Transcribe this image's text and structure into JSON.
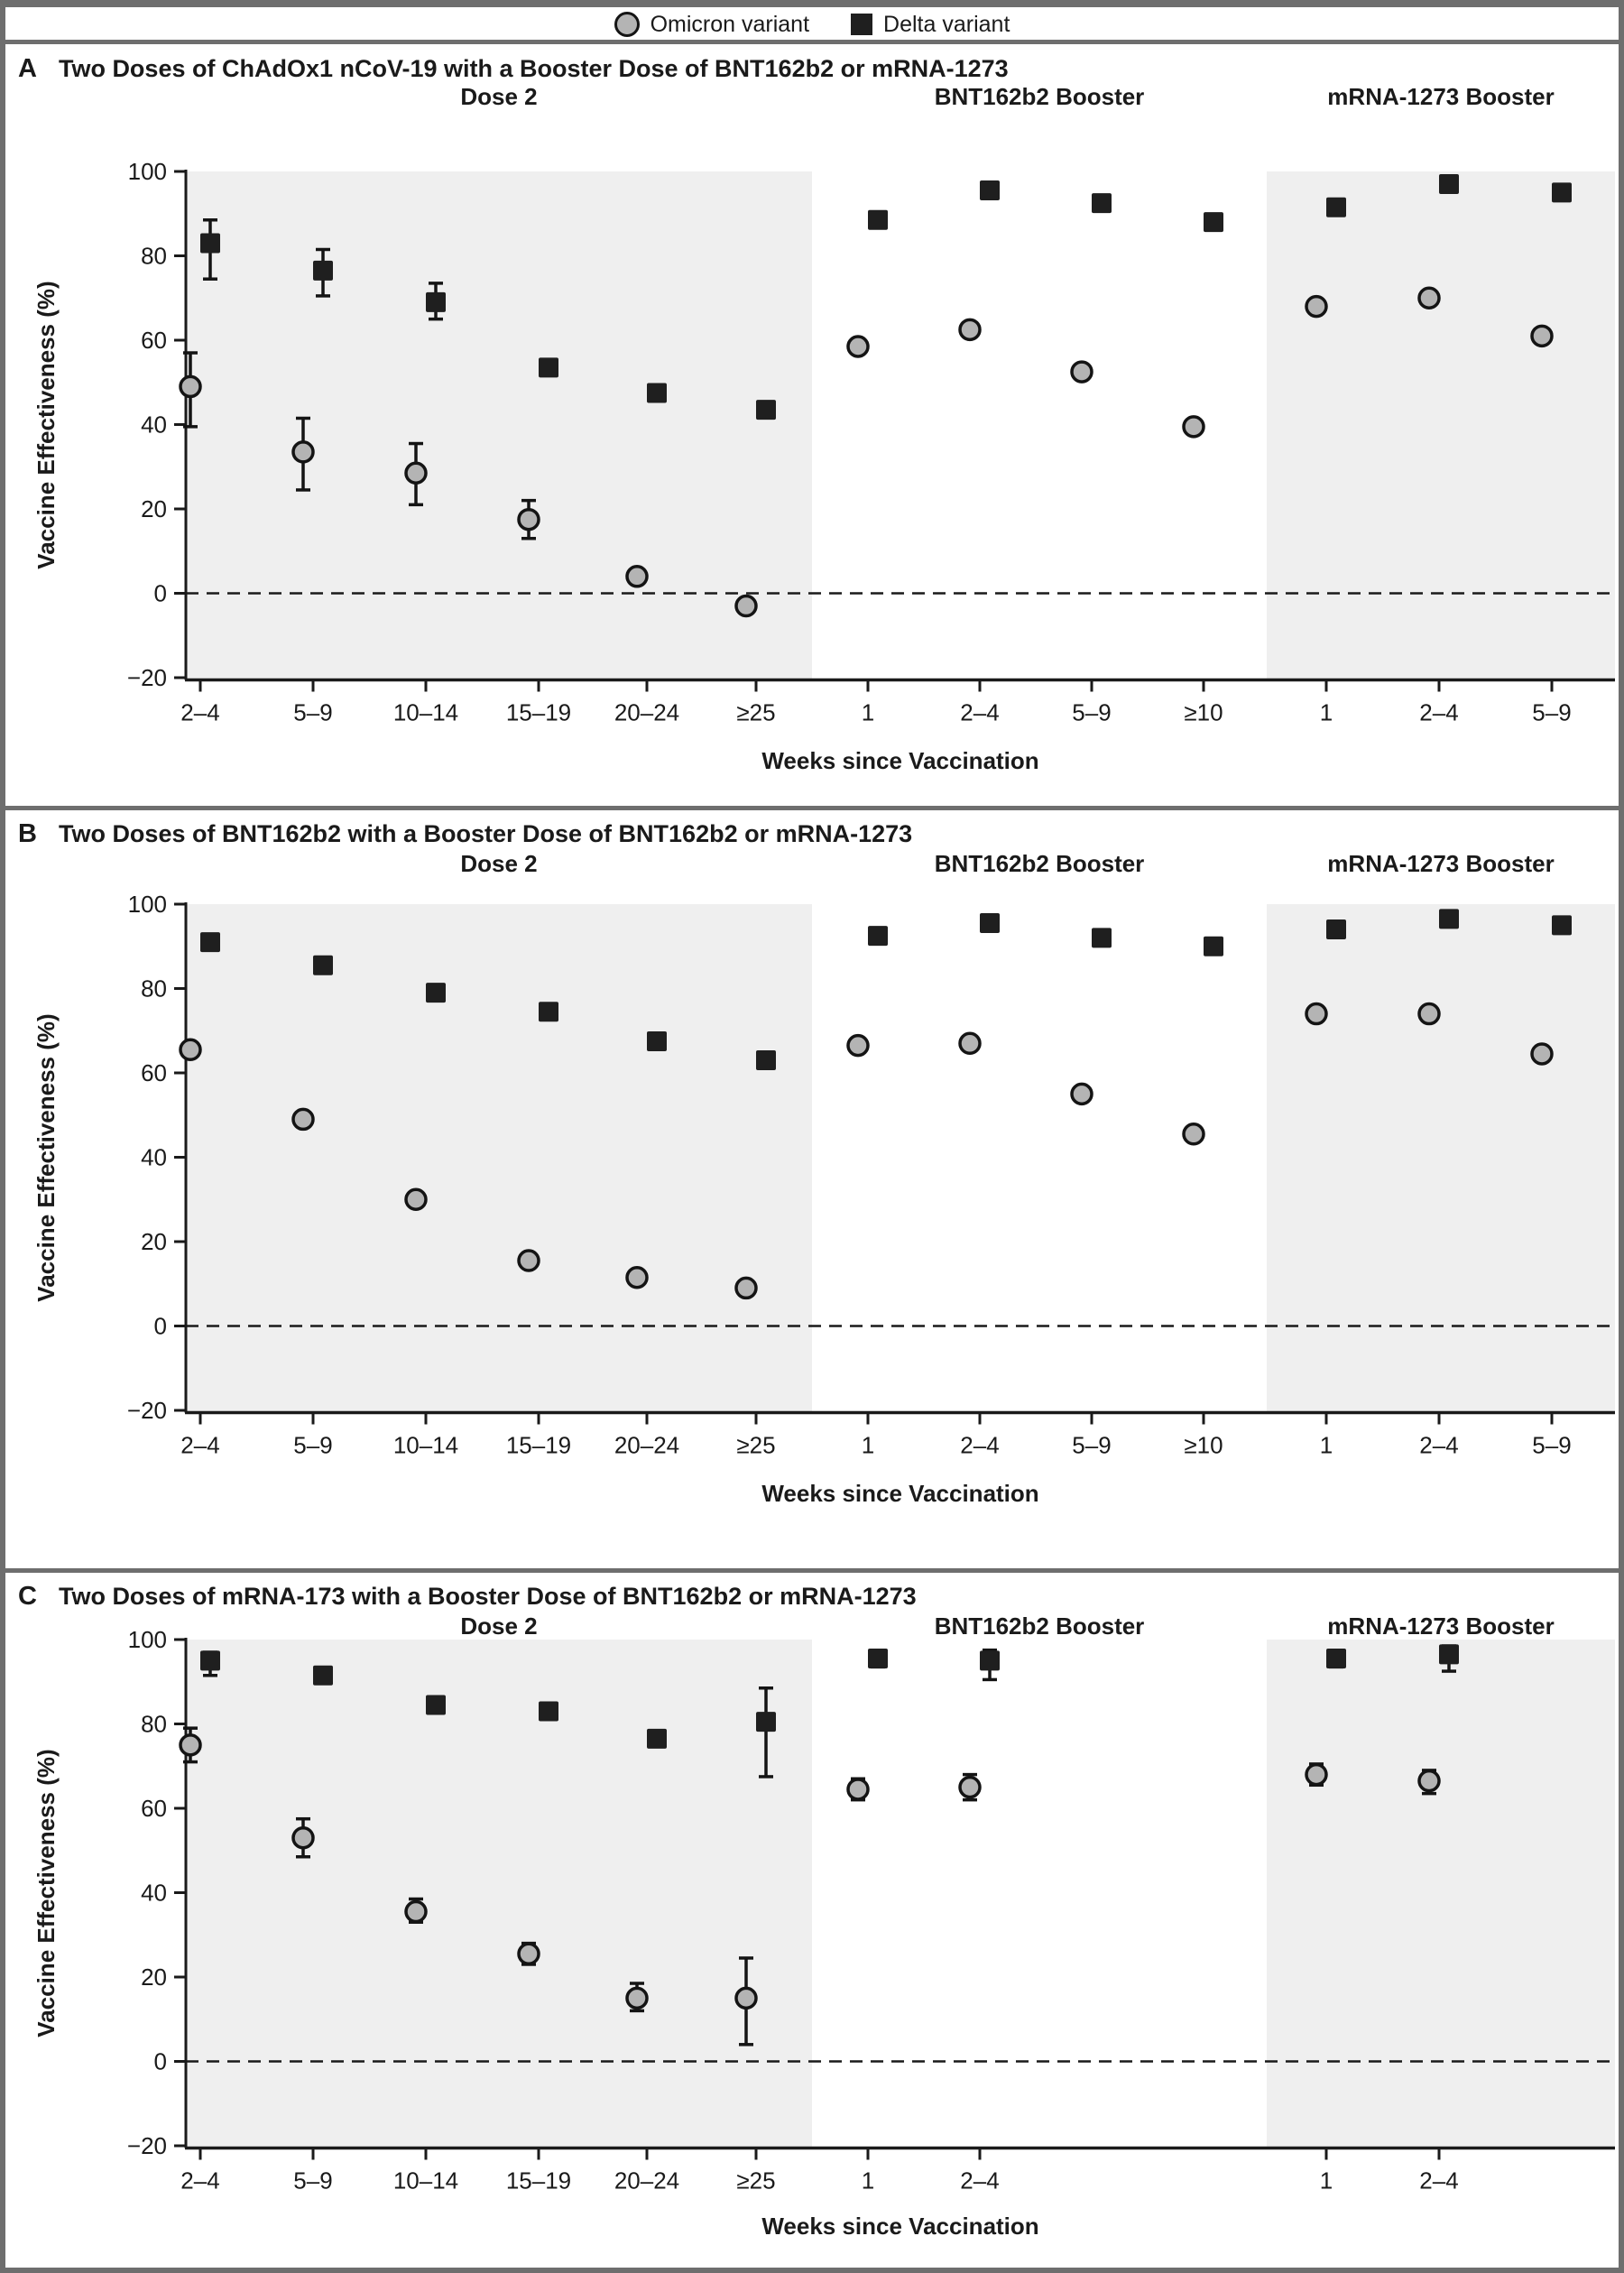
{
  "chart_data": {
    "type": "scatter",
    "y_label": "Vaccine Effectiveness (%)",
    "x_label": "Weeks since Vaccination",
    "y_ticks": [
      "100",
      "80",
      "60",
      "40",
      "20",
      "0",
      "−20"
    ],
    "ylim": [
      -20,
      100
    ],
    "grid": false,
    "zero_line": "dashed",
    "colors": {
      "omicron_fill": "#b4b4b4",
      "delta_fill": "#1f1f1f",
      "shaded_band": "#efefef",
      "frame": "#6e6e6e"
    },
    "legend": {
      "position": "top-center",
      "entries": [
        {
          "label": "Omicron variant",
          "marker": "circle",
          "fill": "#b4b4b4"
        },
        {
          "label": "Delta variant",
          "marker": "square",
          "fill": "#1f1f1f"
        }
      ]
    },
    "panels": [
      {
        "letter": "A",
        "title": "Two Doses of ChAdOx1 nCoV-19 with a Booster Dose of BNT162b2 or mRNA-1273",
        "sections": [
          {
            "key": "dose2",
            "name": "Dose 2",
            "shaded": true,
            "categories": [
              "2–4",
              "5–9",
              "10–14",
              "15–19",
              "20–24",
              "≥25"
            ],
            "series": {
              "omicron": [
                {
                  "v": 49,
                  "lo": 39.5,
                  "hi": 57
                },
                {
                  "v": 33.5,
                  "lo": 24.5,
                  "hi": 41.5
                },
                {
                  "v": 28.5,
                  "lo": 21,
                  "hi": 35.5
                },
                {
                  "v": 17.5,
                  "lo": 13,
                  "hi": 22
                },
                {
                  "v": 4
                },
                {
                  "v": -3
                }
              ],
              "delta": [
                {
                  "v": 83,
                  "lo": 74.5,
                  "hi": 88.5
                },
                {
                  "v": 76.5,
                  "lo": 70.5,
                  "hi": 81.5
                },
                {
                  "v": 69,
                  "lo": 65,
                  "hi": 73.5
                },
                {
                  "v": 53.5
                },
                {
                  "v": 47.5
                },
                {
                  "v": 43.5
                }
              ]
            }
          },
          {
            "key": "bnt",
            "name": "BNT162b2 Booster",
            "shaded": false,
            "categories": [
              "1",
              "2–4",
              "5–9",
              "≥10"
            ],
            "series": {
              "omicron": [
                {
                  "v": 58.5
                },
                {
                  "v": 62.5
                },
                {
                  "v": 52.5
                },
                {
                  "v": 39.5
                }
              ],
              "delta": [
                {
                  "v": 88.5
                },
                {
                  "v": 95.5
                },
                {
                  "v": 92.5
                },
                {
                  "v": 88
                }
              ]
            }
          },
          {
            "key": "mrna",
            "name": "mRNA-1273 Booster",
            "shaded": true,
            "categories": [
              "1",
              "2–4",
              "5–9"
            ],
            "series": {
              "omicron": [
                {
                  "v": 68
                },
                {
                  "v": 70
                },
                {
                  "v": 61
                }
              ],
              "delta": [
                {
                  "v": 91.5
                },
                {
                  "v": 97
                },
                {
                  "v": 95
                }
              ]
            }
          }
        ]
      },
      {
        "letter": "B",
        "title": "Two Doses of BNT162b2 with a Booster Dose of BNT162b2 or mRNA-1273",
        "sections": [
          {
            "key": "dose2",
            "name": "Dose 2",
            "shaded": true,
            "categories": [
              "2–4",
              "5–9",
              "10–14",
              "15–19",
              "20–24",
              "≥25"
            ],
            "series": {
              "omicron": [
                {
                  "v": 65.5
                },
                {
                  "v": 49
                },
                {
                  "v": 30
                },
                {
                  "v": 15.5
                },
                {
                  "v": 11.5
                },
                {
                  "v": 9
                }
              ],
              "delta": [
                {
                  "v": 91
                },
                {
                  "v": 85.5
                },
                {
                  "v": 79
                },
                {
                  "v": 74.5
                },
                {
                  "v": 67.5
                },
                {
                  "v": 63
                }
              ]
            }
          },
          {
            "key": "bnt",
            "name": "BNT162b2 Booster",
            "shaded": false,
            "categories": [
              "1",
              "2–4",
              "5–9",
              "≥10"
            ],
            "series": {
              "omicron": [
                {
                  "v": 66.5
                },
                {
                  "v": 67
                },
                {
                  "v": 55
                },
                {
                  "v": 45.5
                }
              ],
              "delta": [
                {
                  "v": 92.5
                },
                {
                  "v": 95.5
                },
                {
                  "v": 92
                },
                {
                  "v": 90
                }
              ]
            }
          },
          {
            "key": "mrna",
            "name": "mRNA-1273 Booster",
            "shaded": true,
            "categories": [
              "1",
              "2–4",
              "5–9"
            ],
            "series": {
              "omicron": [
                {
                  "v": 74
                },
                {
                  "v": 74
                },
                {
                  "v": 64.5
                }
              ],
              "delta": [
                {
                  "v": 94
                },
                {
                  "v": 96.5
                },
                {
                  "v": 95
                }
              ]
            }
          }
        ]
      },
      {
        "letter": "C",
        "title": "Two Doses of mRNA-173 with a Booster Dose of BNT162b2 or mRNA-1273",
        "sections": [
          {
            "key": "dose2",
            "name": "Dose 2",
            "shaded": true,
            "categories": [
              "2–4",
              "5–9",
              "10–14",
              "15–19",
              "20–24",
              "≥25"
            ],
            "series": {
              "omicron": [
                {
                  "v": 75,
                  "lo": 71,
                  "hi": 79
                },
                {
                  "v": 53,
                  "lo": 48.5,
                  "hi": 57.5
                },
                {
                  "v": 35.5,
                  "lo": 33,
                  "hi": 38.5
                },
                {
                  "v": 25.5,
                  "lo": 23,
                  "hi": 28
                },
                {
                  "v": 15,
                  "lo": 12,
                  "hi": 18.5
                },
                {
                  "v": 15,
                  "lo": 4,
                  "hi": 24.5
                }
              ],
              "delta": [
                {
                  "v": 95,
                  "lo": 91.5,
                  "hi": 97
                },
                {
                  "v": 91.5
                },
                {
                  "v": 84.5
                },
                {
                  "v": 83
                },
                {
                  "v": 76.5
                },
                {
                  "v": 80.5,
                  "lo": 67.5,
                  "hi": 88.5
                }
              ]
            }
          },
          {
            "key": "bnt",
            "name": "BNT162b2 Booster",
            "shaded": false,
            "categories": [
              "1",
              "2–4"
            ],
            "series": {
              "omicron": [
                {
                  "v": 64.5,
                  "lo": 62,
                  "hi": 67
                },
                {
                  "v": 65,
                  "lo": 62,
                  "hi": 68
                }
              ],
              "delta": [
                {
                  "v": 95.5,
                  "lo": 93.5,
                  "hi": 97
                },
                {
                  "v": 95,
                  "lo": 90.5,
                  "hi": 97.5
                }
              ]
            }
          },
          {
            "key": "mrna",
            "name": "mRNA-1273 Booster",
            "shaded": true,
            "categories": [
              "1",
              "2–4"
            ],
            "series": {
              "omicron": [
                {
                  "v": 68,
                  "lo": 65.5,
                  "hi": 70.5
                },
                {
                  "v": 66.5,
                  "lo": 63.5,
                  "hi": 69
                }
              ],
              "delta": [
                {
                  "v": 95.5,
                  "lo": 93.5,
                  "hi": 97
                },
                {
                  "v": 96.5,
                  "lo": 92.5,
                  "hi": 98.5
                }
              ]
            }
          }
        ]
      }
    ]
  }
}
